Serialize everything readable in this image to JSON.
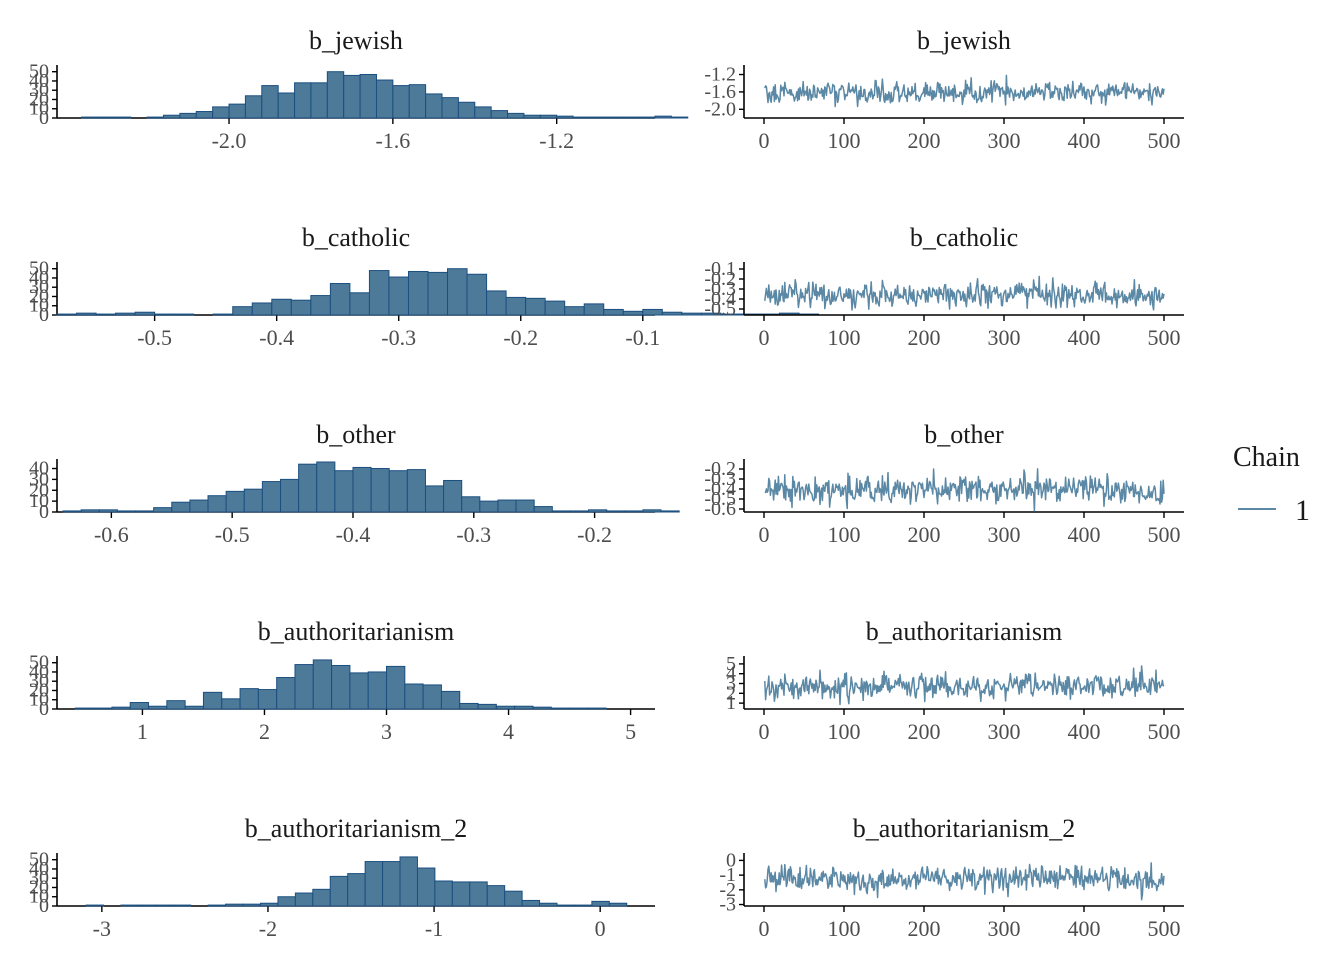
{
  "chart_data": [
    {
      "type": "bar",
      "title": "b_jewish",
      "bin_start": -2.4,
      "bin_width": 0.04,
      "counts": [
        0,
        1,
        1,
        1,
        0,
        1,
        3,
        5,
        7,
        12,
        15,
        24,
        35,
        27,
        38,
        38,
        50,
        46,
        47,
        41,
        35,
        36,
        26,
        22,
        17,
        12,
        8,
        5,
        3,
        3,
        2,
        1,
        1,
        1,
        1,
        1,
        2,
        1,
        0
      ],
      "xlim": [
        -2.42,
        -0.96
      ],
      "xticks": [
        -2.0,
        -1.6,
        -1.2
      ],
      "xtick_labels": [
        "-2.0",
        "-1.6",
        "-1.2"
      ],
      "ylim": [
        0,
        54
      ],
      "yticks": [
        0,
        10,
        20,
        30,
        40,
        50
      ],
      "ytick_labels": [
        "0",
        "10",
        "20",
        "30",
        "40",
        "50"
      ]
    },
    {
      "type": "bar",
      "title": "b_catholic",
      "bin_start": -0.58,
      "bin_width": 0.016,
      "counts": [
        1,
        2,
        1,
        2,
        3,
        1,
        1,
        0,
        1,
        9,
        13,
        17,
        16,
        21,
        34,
        24,
        48,
        41,
        47,
        46,
        50,
        44,
        26,
        19,
        18,
        15,
        9,
        12,
        6,
        4,
        6,
        3,
        2,
        2,
        1,
        1,
        1,
        2,
        1,
        0
      ],
      "xlim": [
        -0.58,
        -0.09
      ],
      "xticks": [
        -0.5,
        -0.4,
        -0.3,
        -0.2,
        -0.1
      ],
      "xtick_labels": [
        "-0.5",
        "-0.4",
        "-0.3",
        "-0.2",
        "-0.1"
      ],
      "ylim": [
        0,
        54
      ],
      "yticks": [
        0,
        10,
        20,
        30,
        40,
        50
      ],
      "ytick_labels": [
        "0",
        "10",
        "20",
        "30",
        "40",
        "50"
      ]
    },
    {
      "type": "bar",
      "title": "b_other",
      "bin_start": -0.64,
      "bin_width": 0.015,
      "counts": [
        1,
        2,
        2,
        1,
        1,
        4,
        9,
        11,
        15,
        19,
        21,
        28,
        30,
        44,
        46,
        38,
        41,
        40,
        38,
        39,
        24,
        29,
        14,
        10,
        11,
        11,
        5,
        1,
        1,
        2,
        1,
        1,
        2,
        1,
        0
      ],
      "xlim": [
        -0.645,
        -0.15
      ],
      "xticks": [
        -0.6,
        -0.5,
        -0.4,
        -0.3,
        -0.2
      ],
      "xtick_labels": [
        "-0.6",
        "-0.5",
        "-0.4",
        "-0.3",
        "-0.2"
      ],
      "ylim": [
        0,
        46
      ],
      "yticks": [
        0,
        10,
        20,
        30,
        40
      ],
      "ytick_labels": [
        "0",
        "10",
        "20",
        "30",
        "40"
      ]
    },
    {
      "type": "bar",
      "title": "b_authoritarianism",
      "bin_start": 0.3,
      "bin_width": 0.15,
      "counts": [
        0,
        1,
        1,
        2,
        7,
        3,
        9,
        3,
        18,
        11,
        22,
        21,
        34,
        48,
        53,
        47,
        39,
        40,
        46,
        27,
        26,
        19,
        6,
        5,
        3,
        3,
        2,
        1,
        1,
        1,
        0
      ],
      "xlim": [
        0.3,
        5.2
      ],
      "xticks": [
        1,
        2,
        3,
        4,
        5
      ],
      "xtick_labels": [
        "1",
        "2",
        "3",
        "4",
        "5"
      ],
      "ylim": [
        0,
        54
      ],
      "yticks": [
        0,
        10,
        20,
        30,
        40,
        50
      ],
      "ytick_labels": [
        "0",
        "10",
        "20",
        "30",
        "40",
        "50"
      ]
    },
    {
      "type": "bar",
      "title": "b_authoritarianism_2",
      "bin_start": -3.2,
      "bin_width": 0.105,
      "counts": [
        0,
        1,
        0,
        1,
        1,
        1,
        1,
        0,
        1,
        2,
        2,
        3,
        10,
        14,
        18,
        32,
        35,
        48,
        48,
        53,
        41,
        27,
        26,
        26,
        22,
        16,
        6,
        3,
        1,
        1,
        5,
        3,
        0
      ],
      "xlim": [
        -3.27,
        0.33
      ],
      "xticks": [
        -3,
        -2,
        -1,
        0
      ],
      "xtick_labels": [
        "-3",
        "-2",
        "-1",
        "0"
      ],
      "ylim": [
        0,
        54
      ],
      "yticks": [
        0,
        10,
        20,
        30,
        40,
        50
      ],
      "ytick_labels": [
        "0",
        "10",
        "20",
        "30",
        "40",
        "50"
      ]
    },
    {
      "type": "line",
      "title": "b_jewish",
      "x_range": [
        1,
        500
      ],
      "series_name": "1",
      "y_center": -1.62,
      "y_sd": 0.12,
      "y_min": -2.05,
      "y_max": -1.22,
      "xlim": [
        -25,
        525
      ],
      "xticks": [
        0,
        100,
        200,
        300,
        400,
        500
      ],
      "xtick_labels": [
        "0",
        "100",
        "200",
        "300",
        "400",
        "500"
      ],
      "ylim": [
        -2.2,
        -1.05
      ],
      "yticks": [
        -2.0,
        -1.6,
        -1.2
      ],
      "ytick_labels": [
        "-2.0",
        "-1.6",
        "-1.2"
      ]
    },
    {
      "type": "line",
      "title": "b_catholic",
      "x_range": [
        1,
        500
      ],
      "series_name": "1",
      "y_center": -0.36,
      "y_sd": 0.06,
      "y_min": -0.55,
      "y_max": -0.12,
      "xlim": [
        -25,
        525
      ],
      "xticks": [
        0,
        100,
        200,
        300,
        400,
        500
      ],
      "xtick_labels": [
        "0",
        "100",
        "200",
        "300",
        "400",
        "500"
      ],
      "ylim": [
        -0.56,
        -0.06
      ],
      "yticks": [
        -0.5,
        -0.4,
        -0.3,
        -0.2,
        -0.1
      ],
      "ytick_labels": [
        "-0.5",
        "-0.4",
        "-0.3",
        "-0.2",
        "-0.1"
      ]
    },
    {
      "type": "line",
      "title": "b_other",
      "x_range": [
        1,
        500
      ],
      "series_name": "1",
      "y_center": -0.41,
      "y_sd": 0.07,
      "y_min": -0.62,
      "y_max": -0.17,
      "xlim": [
        -25,
        525
      ],
      "xticks": [
        0,
        100,
        200,
        300,
        400,
        500
      ],
      "xtick_labels": [
        "0",
        "100",
        "200",
        "300",
        "400",
        "500"
      ],
      "ylim": [
        -0.63,
        -0.13
      ],
      "yticks": [
        -0.6,
        -0.5,
        -0.4,
        -0.3,
        -0.2
      ],
      "ytick_labels": [
        "-0.6",
        "-0.5",
        "-0.4",
        "-0.3",
        "-0.2"
      ]
    },
    {
      "type": "line",
      "title": "b_authoritarianism",
      "x_range": [
        1,
        500
      ],
      "series_name": "1",
      "y_center": 2.7,
      "y_sd": 0.6,
      "y_min": 0.6,
      "y_max": 4.9,
      "xlim": [
        -25,
        525
      ],
      "xticks": [
        0,
        100,
        200,
        300,
        400,
        500
      ],
      "xtick_labels": [
        "0",
        "100",
        "200",
        "300",
        "400",
        "500"
      ],
      "ylim": [
        0.4,
        5.5
      ],
      "yticks": [
        1,
        2,
        3,
        4,
        5
      ],
      "ytick_labels": [
        "1",
        "2",
        "3",
        "4",
        "5"
      ]
    },
    {
      "type": "line",
      "title": "b_authoritarianism_2",
      "x_range": [
        1,
        500
      ],
      "series_name": "1",
      "y_center": -1.25,
      "y_sd": 0.45,
      "y_min": -3.0,
      "y_max": 0.2,
      "xlim": [
        -25,
        525
      ],
      "xticks": [
        0,
        100,
        200,
        300,
        400,
        500
      ],
      "xtick_labels": [
        "0",
        "100",
        "200",
        "300",
        "400",
        "500"
      ],
      "ylim": [
        -3.1,
        0.3
      ],
      "yticks": [
        -3,
        -2,
        -1,
        0
      ],
      "ytick_labels": [
        "-3",
        "-2",
        "-1",
        "0"
      ]
    }
  ],
  "legend": {
    "title": "Chain",
    "items": [
      {
        "label": "1",
        "color": "#5b88a5"
      }
    ],
    "placement": "right"
  },
  "colors": {
    "bar_fill": "#4e7a99",
    "bar_stroke": "#1b4f80",
    "line": "#5b88a5",
    "axis": "#000000"
  }
}
